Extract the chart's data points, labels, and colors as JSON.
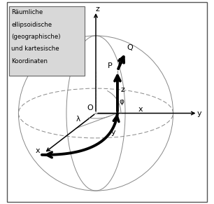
{
  "title_lines": [
    "Räumliche",
    "ellipsoidische",
    "(geographische)",
    "und kartesische",
    "Koordinaten"
  ],
  "bg_color": "#ffffff",
  "border_color": "#555555",
  "axis_color": "#000000",
  "ellipse_color": "#888888",
  "figsize": [
    3.06,
    2.91
  ],
  "dpi": 100,
  "ox": 0.445,
  "oy": 0.445,
  "sphere_r": 0.38
}
